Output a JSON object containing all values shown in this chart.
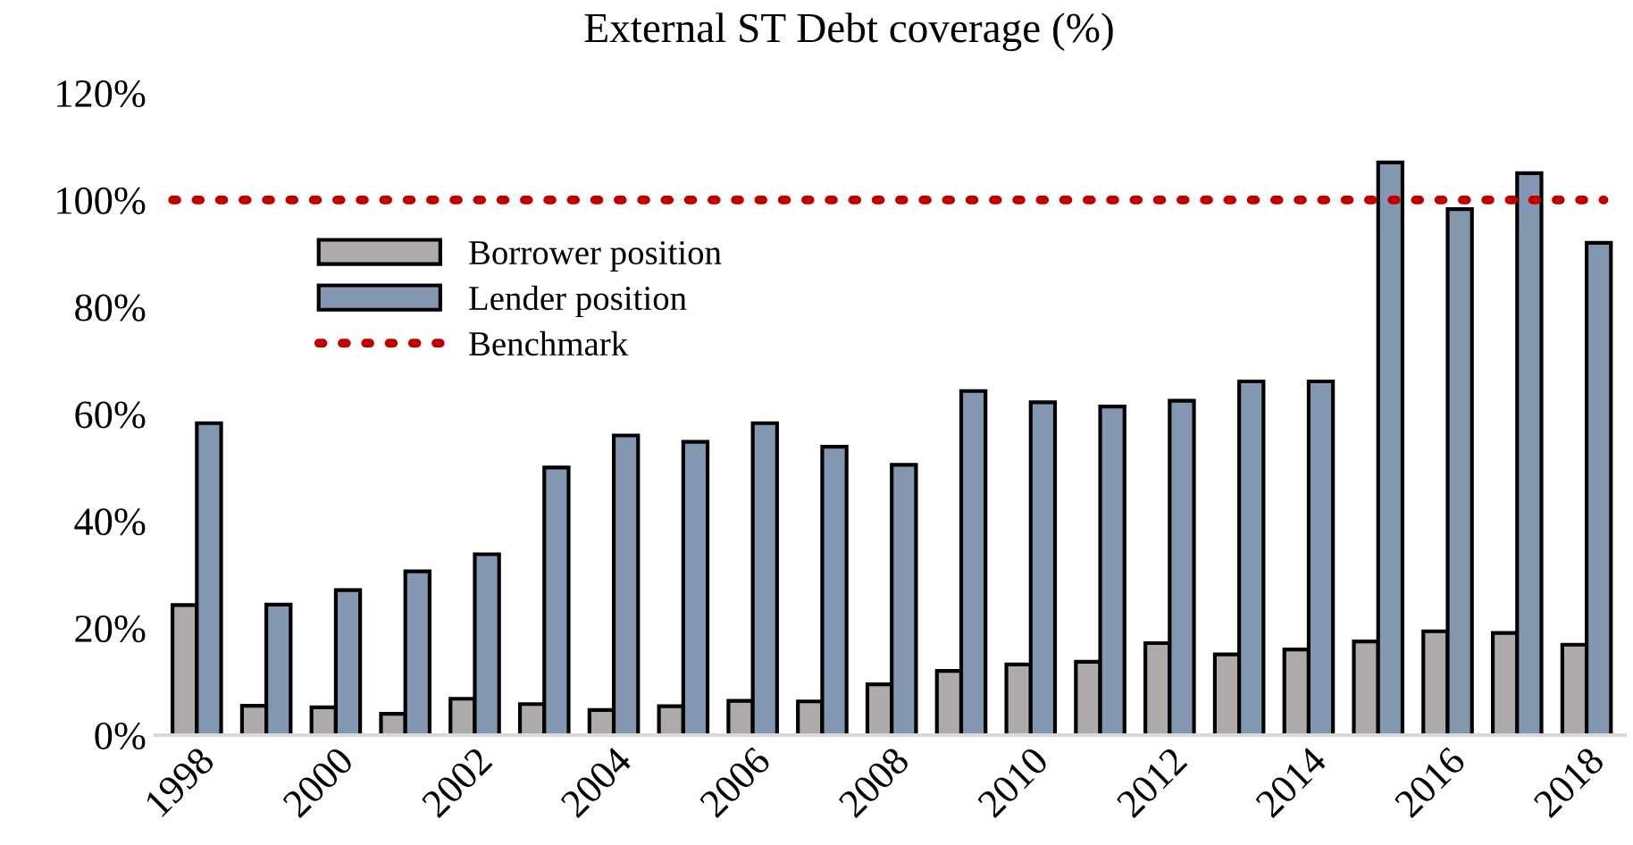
{
  "chart_data": {
    "type": "bar",
    "title": "External ST Debt coverage (%)",
    "categories": [
      "1998",
      null,
      "2000",
      null,
      "2002",
      null,
      "2004",
      null,
      "2006",
      null,
      "2008",
      null,
      "2010",
      null,
      "2012",
      null,
      "2014",
      null,
      "2016",
      null,
      "2018"
    ],
    "series": [
      {
        "name": "Borrower position",
        "color": "#aeaaaa",
        "values": [
          24.3,
          5.5,
          5.2,
          4.0,
          6.8,
          5.8,
          4.7,
          5.4,
          6.4,
          6.3,
          9.5,
          12.0,
          13.2,
          13.7,
          17.2,
          15.1,
          16.0,
          17.5,
          19.4,
          19.1,
          16.9
        ]
      },
      {
        "name": "Lender position",
        "color": "#8497b0",
        "values": [
          58.3,
          24.4,
          27.1,
          30.6,
          33.8,
          50.0,
          56.0,
          54.8,
          58.3,
          53.9,
          50.5,
          64.3,
          62.2,
          61.4,
          62.5,
          66.1,
          66.1,
          107.0,
          98.3,
          105.0,
          92.0
        ]
      }
    ],
    "ref_lines": [
      {
        "axis": "y",
        "value": 100,
        "label": "Benchmark",
        "color": "#c00000",
        "line_style": "dotted"
      }
    ],
    "ylim": [
      0,
      120
    ],
    "yticks": [
      {
        "value": 0,
        "label": "0%"
      },
      {
        "value": 20,
        "label": "20%"
      },
      {
        "value": 40,
        "label": "40%"
      },
      {
        "value": 60,
        "label": "60%"
      },
      {
        "value": 80,
        "label": "80%"
      },
      {
        "value": 100,
        "label": "100%"
      },
      {
        "value": 120,
        "label": "120%"
      }
    ],
    "grid": false,
    "legend": "top left"
  }
}
